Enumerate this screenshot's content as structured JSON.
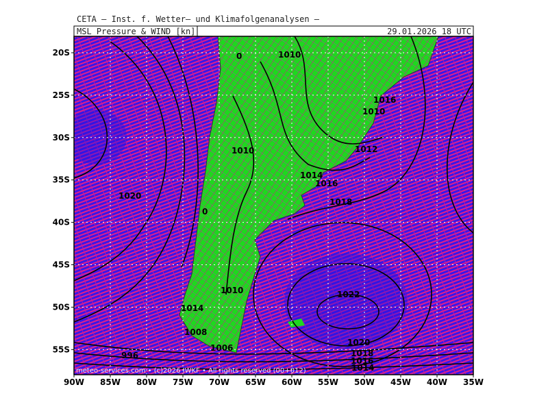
{
  "header": {
    "title": "CETA — Inst. f. Wetter— und Klimafolgenanalysen —",
    "field": "MSL Pressure & WIND [kn]",
    "valid": "29.01.2026 18 UTC"
  },
  "axes": {
    "lat": [
      "20S",
      "25S",
      "30S",
      "35S",
      "40S",
      "45S",
      "50S",
      "55S"
    ],
    "lon": [
      "90W",
      "85W",
      "80W",
      "75W",
      "70W",
      "65W",
      "60W",
      "55W",
      "50W",
      "45W",
      "40W",
      "35W"
    ]
  },
  "isobar_labels": [
    "1010",
    "0",
    "1016",
    "1010",
    "1012",
    "1010",
    "1014",
    "1016",
    "1018",
    "1020",
    "0",
    "1010",
    "1022",
    "1014",
    "1008",
    "1006",
    "1020",
    "1018",
    "1016",
    "1014",
    "996"
  ],
  "credit": "meteo-services.com • (c)2026 IWKF • All rights reserved (00+012)"
}
